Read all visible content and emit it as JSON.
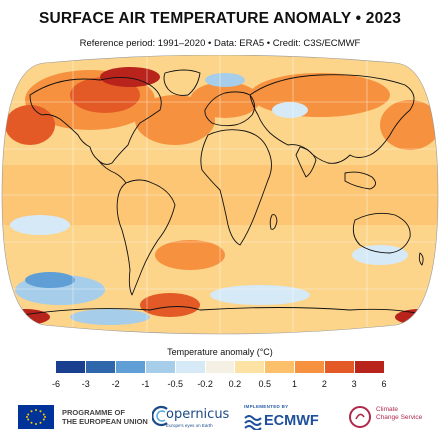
{
  "title": "SURFACE AIR TEMPERATURE ANOMALY • 2023",
  "subtitle": "Reference period: 1991–2020 • Data: ERA5 • Credit: C3S/ECMWF",
  "legend": {
    "title": "Temperature anomaly (°C)",
    "ticks": [
      "-6",
      "-3",
      "-2",
      "-1",
      "-0.5",
      "-0.2",
      "0.2",
      "0.5",
      "1",
      "2",
      "3",
      "6"
    ],
    "colors": [
      "#1a3f8f",
      "#2f66ac",
      "#5f9fd6",
      "#a6cde9",
      "#d6e9f6",
      "#f4f1e4",
      "#fde3a3",
      "#fcc06b",
      "#f6923f",
      "#e45a26",
      "#b8231c"
    ]
  },
  "map": {
    "ocean_base_color": "#fcd48a",
    "land_outline_color": "#111111",
    "graticule_color": "#ffffff"
  },
  "logos": {
    "eu": {
      "line1": "PROGRAMME OF",
      "line2": "THE EUROPEAN UNION"
    },
    "copernicus": {
      "name": "opernicus",
      "tagline": "Europe's eyes on Earth"
    },
    "ecmwf": {
      "implemented": "IMPLEMENTED BY",
      "name": "ECMWF"
    },
    "c3s": {
      "line1": "Climate",
      "line2": "Change Service"
    }
  }
}
